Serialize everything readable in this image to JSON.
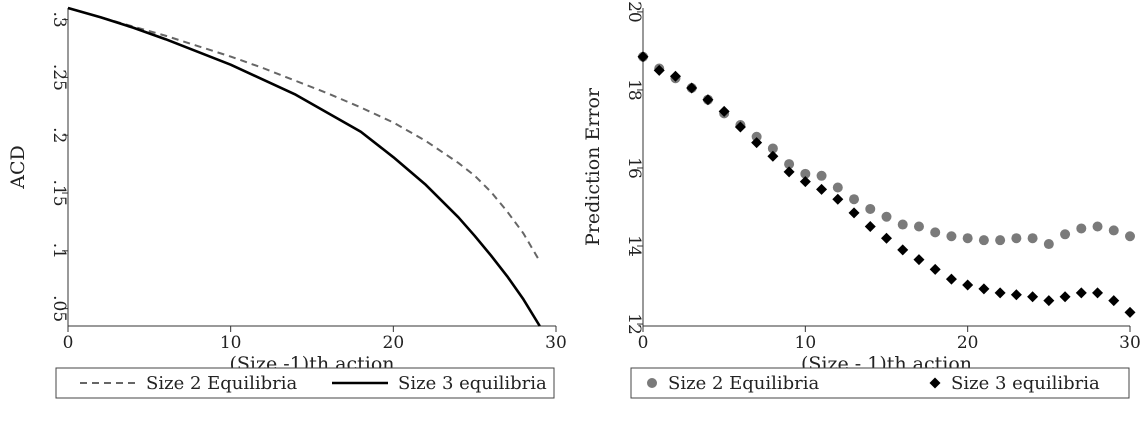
{
  "chart_data": [
    {
      "type": "line",
      "xlabel": "(Size -1)th action",
      "ylabel": "ACD",
      "xlim": [
        0,
        30
      ],
      "ylim": [
        0.035,
        0.31
      ],
      "xticks": [
        0,
        10,
        20,
        30
      ],
      "xtick_labels": [
        "0",
        "10",
        "20",
        "30"
      ],
      "yticks": [
        0.05,
        0.1,
        0.15,
        0.2,
        0.25,
        0.3
      ],
      "ytick_labels": [
        ".05",
        ".1",
        ".15",
        ".2",
        ".25",
        ".3"
      ],
      "grid": false,
      "legend_position": "bottom",
      "series": [
        {
          "name": "Size 2 Equilibria",
          "style": "dashed",
          "color": "#666666",
          "x": [
            0,
            2,
            4,
            6,
            8,
            10,
            12,
            14,
            16,
            18,
            20,
            22,
            24,
            25,
            26,
            27,
            28,
            29
          ],
          "y": [
            0.31,
            0.302,
            0.294,
            0.286,
            0.277,
            0.268,
            0.258,
            0.247,
            0.236,
            0.224,
            0.211,
            0.195,
            0.176,
            0.165,
            0.151,
            0.134,
            0.115,
            0.091
          ]
        },
        {
          "name": "Size 3 equilibria",
          "style": "solid",
          "color": "#000000",
          "x": [
            0,
            2,
            4,
            6,
            8,
            10,
            12,
            14,
            16,
            18,
            20,
            22,
            24,
            25,
            26,
            27,
            28,
            29
          ],
          "y": [
            0.31,
            0.302,
            0.293,
            0.283,
            0.272,
            0.261,
            0.248,
            0.235,
            0.219,
            0.203,
            0.181,
            0.157,
            0.129,
            0.113,
            0.096,
            0.078,
            0.058,
            0.035
          ]
        }
      ]
    },
    {
      "type": "scatter",
      "xlabel": "(Size - 1)th action",
      "ylabel": "Prediction Error",
      "xlim": [
        0,
        30
      ],
      "ylim": [
        11.95,
        20.1
      ],
      "xticks": [
        0,
        10,
        20,
        30
      ],
      "xtick_labels": [
        "0",
        "10",
        "20",
        "30"
      ],
      "yticks": [
        12,
        14,
        16,
        18,
        20
      ],
      "ytick_labels": [
        "12",
        "14",
        "16",
        "18",
        "20"
      ],
      "grid": false,
      "legend_position": "bottom",
      "series": [
        {
          "name": "Size 2 Equilibria",
          "marker": "circle",
          "color": "#7a7a7a",
          "x": [
            0,
            1,
            2,
            3,
            4,
            5,
            6,
            7,
            8,
            9,
            10,
            11,
            12,
            13,
            14,
            15,
            16,
            17,
            18,
            19,
            20,
            21,
            22,
            23,
            24,
            25,
            26,
            27,
            28,
            29,
            30
          ],
          "y": [
            18.85,
            18.55,
            18.3,
            18.05,
            17.75,
            17.4,
            17.1,
            16.8,
            16.5,
            16.1,
            15.85,
            15.8,
            15.5,
            15.2,
            14.95,
            14.75,
            14.55,
            14.5,
            14.35,
            14.25,
            14.2,
            14.15,
            14.15,
            14.2,
            14.2,
            14.05,
            14.3,
            14.45,
            14.5,
            14.4,
            14.25
          ]
        },
        {
          "name": "Size 3 equilibria",
          "marker": "diamond",
          "color": "#000000",
          "x": [
            0,
            1,
            2,
            3,
            4,
            5,
            6,
            7,
            8,
            9,
            10,
            11,
            12,
            13,
            14,
            15,
            16,
            17,
            18,
            19,
            20,
            21,
            22,
            23,
            24,
            25,
            26,
            27,
            28,
            29,
            30
          ],
          "y": [
            18.85,
            18.5,
            18.35,
            18.05,
            17.75,
            17.45,
            17.05,
            16.65,
            16.3,
            15.9,
            15.65,
            15.45,
            15.2,
            14.85,
            14.5,
            14.2,
            13.9,
            13.65,
            13.4,
            13.15,
            13.0,
            12.9,
            12.8,
            12.75,
            12.7,
            12.6,
            12.7,
            12.8,
            12.8,
            12.6,
            12.3
          ]
        }
      ]
    }
  ]
}
